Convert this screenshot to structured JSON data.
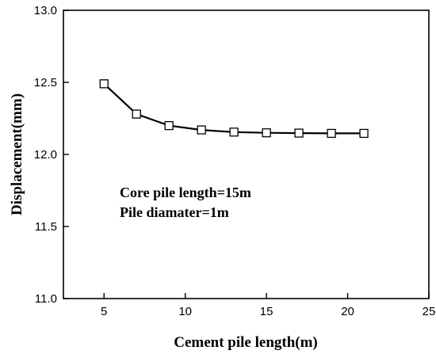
{
  "chart_data": {
    "type": "line",
    "title": "",
    "xlabel": "Cement pile length(m)",
    "ylabel": "Displacement(mm)",
    "xlim": [
      2.5,
      25
    ],
    "ylim": [
      11.0,
      13.0
    ],
    "xticks": [
      5,
      10,
      15,
      20,
      25
    ],
    "yticks": [
      11.0,
      11.5,
      12.0,
      12.5,
      13.0
    ],
    "xtick_labels": [
      "5",
      "10",
      "15",
      "20",
      "25"
    ],
    "ytick_labels": [
      "11.0",
      "11.5",
      "12.0",
      "12.5",
      "13.0"
    ],
    "grid": false,
    "marker": "open-square",
    "series": [
      {
        "x": [
          5,
          7,
          9,
          11,
          13,
          15,
          17,
          19,
          21
        ],
        "values": [
          12.49,
          12.28,
          12.2,
          12.17,
          12.155,
          12.15,
          12.148,
          12.146,
          12.146
        ]
      }
    ],
    "annotations": [
      "Core pile length=15m",
      "Pile diamater=1m"
    ]
  }
}
